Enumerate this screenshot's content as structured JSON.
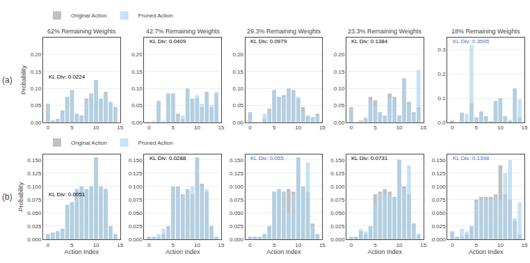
{
  "chart_data": [
    {
      "type": "bar",
      "title": "62% Remaining Weights",
      "ylabel": "Probability",
      "x": [
        0,
        1,
        2,
        3,
        4,
        5,
        6,
        7,
        8,
        9,
        10,
        11,
        12,
        13,
        14
      ],
      "xlim": [
        -1,
        15
      ],
      "xticks": [
        0,
        5,
        10,
        15
      ],
      "ylim": [
        0,
        0.25
      ],
      "yticks": [
        {
          "value": 0,
          "label": "0.00"
        },
        0.05,
        {
          "value": 0.1,
          "label": "0.10"
        },
        0.15,
        {
          "value": 0.2,
          "label": "0.20"
        }
      ],
      "grid": "y",
      "legend": "upper left",
      "series": [
        {
          "name": "Original Action",
          "color": "#c0c0c0",
          "values": [
            0.055,
            0.005,
            0.01,
            0.035,
            0.075,
            0.095,
            0.025,
            0.02,
            0.07,
            0.085,
            0.125,
            0.07,
            0.09,
            0.06,
            0.045
          ]
        },
        {
          "name": "Pruned Action",
          "color": "#aed6f1",
          "values": [
            0.055,
            0.005,
            0.01,
            0.035,
            0.075,
            0.095,
            0.025,
            0.02,
            0.07,
            0.085,
            0.125,
            0.07,
            0.09,
            0.06,
            0.045
          ]
        }
      ],
      "annotations": [
        {
          "text": "(a)"
        },
        {
          "text": "KL Div: 0.0224",
          "color": "black"
        }
      ]
    },
    {
      "type": "bar",
      "title": "42.7% Remaining Weights",
      "x": [
        0,
        1,
        2,
        3,
        4,
        5,
        6,
        7,
        8,
        9,
        10,
        11,
        12,
        13,
        14
      ],
      "xlim": [
        -1,
        15
      ],
      "xticks": [
        0,
        5,
        10,
        15
      ],
      "ylim": [
        0,
        0.25
      ],
      "yticks": [
        {
          "value": 0,
          "label": "0.00"
        },
        0.05,
        {
          "value": 0.1,
          "label": "0.10"
        },
        0.15,
        {
          "value": 0.2,
          "label": "0.20"
        }
      ],
      "grid": "y",
      "series": [
        {
          "color": "#c0c0c0",
          "values": [
            0,
            0,
            0.06,
            0,
            0.085,
            0.085,
            0.025,
            0.01,
            0.1,
            0.07,
            0.072,
            0.045,
            0.09,
            0.044,
            0.085
          ]
        },
        {
          "color": "#aed6f1",
          "values": [
            0,
            0.005,
            0.065,
            0.005,
            0.085,
            0.085,
            0.02,
            0.02,
            0.1,
            0.07,
            0.08,
            0.055,
            0.09,
            0.05,
            0.09
          ]
        }
      ],
      "annotations": [
        {
          "text": "KL Div: 0.0409",
          "color": "black"
        }
      ]
    },
    {
      "type": "bar",
      "title": "29.3% Remaining Weights",
      "x": [
        0,
        1,
        2,
        3,
        4,
        5,
        6,
        7,
        8,
        9,
        10,
        11,
        12,
        13,
        14
      ],
      "xlim": [
        -1,
        15
      ],
      "xticks": [
        0,
        5,
        10,
        15
      ],
      "ylim": [
        0,
        0.25
      ],
      "yticks": [
        {
          "value": 0,
          "label": "0.00"
        },
        0.05,
        {
          "value": 0.1,
          "label": "0.10"
        },
        0.15,
        {
          "value": 0.2,
          "label": "0.20"
        }
      ],
      "grid": "y",
      "series": [
        {
          "color": "#c0c0c0",
          "values": [
            0.03,
            0,
            0,
            0.01,
            0.04,
            0.095,
            0.075,
            0.08,
            0.1,
            0.095,
            0.07,
            0.045,
            0.02,
            0.015,
            0.025
          ]
        },
        {
          "color": "#aed6f1",
          "values": [
            0.03,
            0,
            0,
            0.025,
            0.035,
            0.095,
            0.075,
            0.075,
            0.1,
            0.095,
            0.075,
            0.03,
            0.02,
            0.015,
            0.02
          ]
        }
      ],
      "annotations": [
        {
          "text": "KL Div: 0.0979",
          "color": "black"
        }
      ]
    },
    {
      "type": "bar",
      "title": "23.3% Remaining Weights",
      "x": [
        0,
        1,
        2,
        3,
        4,
        5,
        6,
        7,
        8,
        9,
        10,
        11,
        12,
        13,
        14
      ],
      "xlim": [
        -1,
        15
      ],
      "xticks": [
        0,
        5,
        10,
        15
      ],
      "ylim": [
        0,
        0.25
      ],
      "yticks": [
        {
          "value": 0,
          "label": "0.00"
        },
        0.05,
        {
          "value": 0.1,
          "label": "0.10"
        },
        0.15,
        {
          "value": 0.2,
          "label": "0.20"
        }
      ],
      "grid": "y",
      "series": [
        {
          "color": "#c0c0c0",
          "values": [
            0.045,
            0,
            0.005,
            0.01,
            0.075,
            0.065,
            0.03,
            0.02,
            0.085,
            0.075,
            0.02,
            0.13,
            0.06,
            0.03,
            0.045
          ]
        },
        {
          "color": "#aed6f1",
          "values": [
            0.045,
            0,
            0.005,
            0.015,
            0.065,
            0.05,
            0.03,
            0.02,
            0.075,
            0.07,
            0.02,
            0.13,
            0.055,
            0.025,
            0.155
          ]
        }
      ],
      "annotations": [
        {
          "text": "KL Div: 0.1384",
          "color": "black"
        }
      ]
    },
    {
      "type": "bar",
      "title": "18% Remaining Weights",
      "x": [
        0,
        1,
        2,
        3,
        4,
        5,
        6,
        7,
        8,
        9,
        10,
        11,
        12,
        13,
        14
      ],
      "xlim": [
        -1,
        15
      ],
      "xticks": [
        0,
        5,
        10,
        15
      ],
      "ylim": [
        0,
        0.35
      ],
      "yticks": [
        {
          "value": 0,
          "label": "0.0"
        },
        0.1,
        0.2,
        0.3
      ],
      "grid": "y",
      "series": [
        {
          "color": "#c0c0c0",
          "values": [
            0.005,
            0,
            0.04,
            0.005,
            0.08,
            0.02,
            0.045,
            0.025,
            0.005,
            0.085,
            0.1,
            0.025,
            0.005,
            0.14,
            0.02
          ]
        },
        {
          "color": "#aed6f1",
          "values": [
            0.01,
            0,
            0.04,
            0.035,
            0.32,
            0.02,
            0.045,
            0.025,
            0.005,
            0.09,
            0.1,
            0.025,
            0.01,
            0.14,
            0.095
          ]
        }
      ],
      "annotations": [
        {
          "text": "KL Div: 0.3595",
          "color": "#4472c4"
        }
      ]
    },
    {
      "type": "bar",
      "xlabel": "Action Index",
      "ylabel": "Probability",
      "x": [
        0,
        1,
        2,
        3,
        4,
        5,
        6,
        7,
        8,
        9,
        10,
        11,
        12,
        13,
        14
      ],
      "xlim": [
        -1,
        15
      ],
      "xticks": [
        0,
        5,
        10,
        15
      ],
      "ylim": [
        0,
        0.16
      ],
      "yticks": [
        {
          "value": 0,
          "label": "0.000"
        },
        0.025,
        {
          "value": 0.05,
          "label": "0.050"
        },
        0.075,
        {
          "value": 0.1,
          "label": "0.100"
        },
        0.125,
        {
          "value": 0.15,
          "label": "0.150"
        }
      ],
      "grid": "y",
      "legend": "upper left",
      "series": [
        {
          "name": "Original Action",
          "color": "#c0c0c0",
          "values": [
            0.01,
            0.013,
            0.015,
            0.02,
            0.065,
            0.07,
            0.095,
            0.1,
            0.095,
            0.1,
            0.155,
            0.1,
            0.095,
            0.025,
            0.01
          ]
        },
        {
          "name": "Pruned Action",
          "color": "#aed6f1",
          "values": [
            0.01,
            0.013,
            0.015,
            0.02,
            0.065,
            0.07,
            0.095,
            0.1,
            0.095,
            0.1,
            0.155,
            0.1,
            0.095,
            0.025,
            0.01
          ]
        }
      ],
      "annotations": [
        {
          "text": "(b)"
        },
        {
          "text": "KL Div: 0.0051",
          "color": "black"
        }
      ]
    },
    {
      "type": "bar",
      "xlabel": "Action Index",
      "x": [
        0,
        1,
        2,
        3,
        4,
        5,
        6,
        7,
        8,
        9,
        10,
        11,
        12,
        13,
        14
      ],
      "xlim": [
        -1,
        15
      ],
      "xticks": [
        0,
        5,
        10,
        15
      ],
      "ylim": [
        0,
        0.16
      ],
      "yticks": [
        {
          "value": 0,
          "label": "0.000"
        },
        0.025,
        {
          "value": 0.05,
          "label": "0.050"
        },
        0.075,
        {
          "value": 0.1,
          "label": "0.100"
        },
        0.125,
        {
          "value": 0.15,
          "label": "0.150"
        }
      ],
      "grid": "y",
      "series": [
        {
          "color": "#c0c0c0",
          "values": [
            0.005,
            0.005,
            0.005,
            0.01,
            0.025,
            0.1,
            0.1,
            0.085,
            0.095,
            0.085,
            0.155,
            0.105,
            0.09,
            0.025,
            0.005
          ]
        },
        {
          "color": "#aed6f1",
          "values": [
            0.005,
            0.005,
            0.01,
            0.02,
            0.025,
            0.1,
            0.1,
            0.085,
            0.095,
            0.1,
            0.155,
            0.1,
            0.095,
            0.025,
            0.005
          ]
        }
      ],
      "annotations": [
        {
          "text": "KL Div: 0.0288",
          "color": "black"
        }
      ]
    },
    {
      "type": "bar",
      "xlabel": "Action Index",
      "x": [
        0,
        1,
        2,
        3,
        4,
        5,
        6,
        7,
        8,
        9,
        10,
        11,
        12,
        13,
        14
      ],
      "xlim": [
        -1,
        15
      ],
      "xticks": [
        0,
        5,
        10,
        15
      ],
      "ylim": [
        0,
        0.16
      ],
      "yticks": [
        {
          "value": 0,
          "label": "0.000"
        },
        0.025,
        {
          "value": 0.05,
          "label": "0.050"
        },
        0.075,
        {
          "value": 0.1,
          "label": "0.100"
        },
        0.125,
        {
          "value": 0.15,
          "label": "0.150"
        }
      ],
      "grid": "y",
      "series": [
        {
          "color": "#c0c0c0",
          "values": [
            0.005,
            0.005,
            0.005,
            0.01,
            0.025,
            0.09,
            0.095,
            0.09,
            0.095,
            0.09,
            0.155,
            0.1,
            0.09,
            0.03,
            0.01
          ]
        },
        {
          "color": "#aed6f1",
          "values": [
            0.005,
            0.005,
            0.005,
            0.01,
            0.025,
            0.09,
            0.095,
            0.09,
            0.05,
            0.085,
            0.155,
            0.1,
            0.145,
            0.025,
            0.01
          ]
        }
      ],
      "annotations": [
        {
          "text": "KL Div: 0.055",
          "color": "#4472c4"
        }
      ]
    },
    {
      "type": "bar",
      "xlabel": "Action Index",
      "x": [
        0,
        1,
        2,
        3,
        4,
        5,
        6,
        7,
        8,
        9,
        10,
        11,
        12,
        13,
        14
      ],
      "xlim": [
        -1,
        15
      ],
      "xticks": [
        0,
        5,
        10,
        15
      ],
      "ylim": [
        0,
        0.16
      ],
      "yticks": [
        {
          "value": 0,
          "label": "0.000"
        },
        0.025,
        {
          "value": 0.05,
          "label": "0.050"
        },
        0.075,
        {
          "value": 0.1,
          "label": "0.100"
        },
        0.125,
        {
          "value": 0.15,
          "label": "0.150"
        }
      ],
      "grid": "y",
      "series": [
        {
          "color": "#c0c0c0",
          "values": [
            0.005,
            0.005,
            0.015,
            0.01,
            0.025,
            0.085,
            0.09,
            0.095,
            0.09,
            0.08,
            0.15,
            0.1,
            0.085,
            0.03,
            0.01
          ]
        },
        {
          "color": "#aed6f1",
          "values": [
            0.005,
            0.005,
            0.02,
            0.015,
            0.025,
            0.065,
            0.085,
            0.085,
            0.085,
            0.08,
            0.15,
            0.095,
            0.14,
            0.03,
            0.01
          ]
        }
      ],
      "annotations": [
        {
          "text": "KL Div: 0.0731",
          "color": "black"
        }
      ]
    },
    {
      "type": "bar",
      "xlabel": "Action Index",
      "x": [
        0,
        1,
        2,
        3,
        4,
        5,
        6,
        7,
        8,
        9,
        10,
        11,
        12,
        13,
        14
      ],
      "xlim": [
        -1,
        15
      ],
      "xticks": [
        0,
        5,
        10,
        15
      ],
      "ylim": [
        0,
        0.16
      ],
      "yticks": [
        {
          "value": 0,
          "label": "0.000"
        },
        0.025,
        {
          "value": 0.05,
          "label": "0.050"
        },
        0.075,
        {
          "value": 0.1,
          "label": "0.100"
        },
        0.125,
        {
          "value": 0.15,
          "label": "0.150"
        }
      ],
      "grid": "y",
      "series": [
        {
          "color": "#c0c0c0",
          "values": [
            0.015,
            0.005,
            0.005,
            0.01,
            0.025,
            0.075,
            0.08,
            0.08,
            0.08,
            0.085,
            0.14,
            0.085,
            0.075,
            0.035,
            0.01
          ]
        },
        {
          "color": "#aed6f1",
          "values": [
            0.015,
            0.005,
            0.02,
            0.015,
            0.025,
            0.07,
            0.075,
            0.075,
            0.075,
            0.08,
            0.075,
            0.125,
            0.15,
            0.04,
            0.07
          ]
        }
      ],
      "annotations": [
        {
          "text": "KL Div: 0.1398",
          "color": "#4472c4"
        }
      ]
    }
  ]
}
